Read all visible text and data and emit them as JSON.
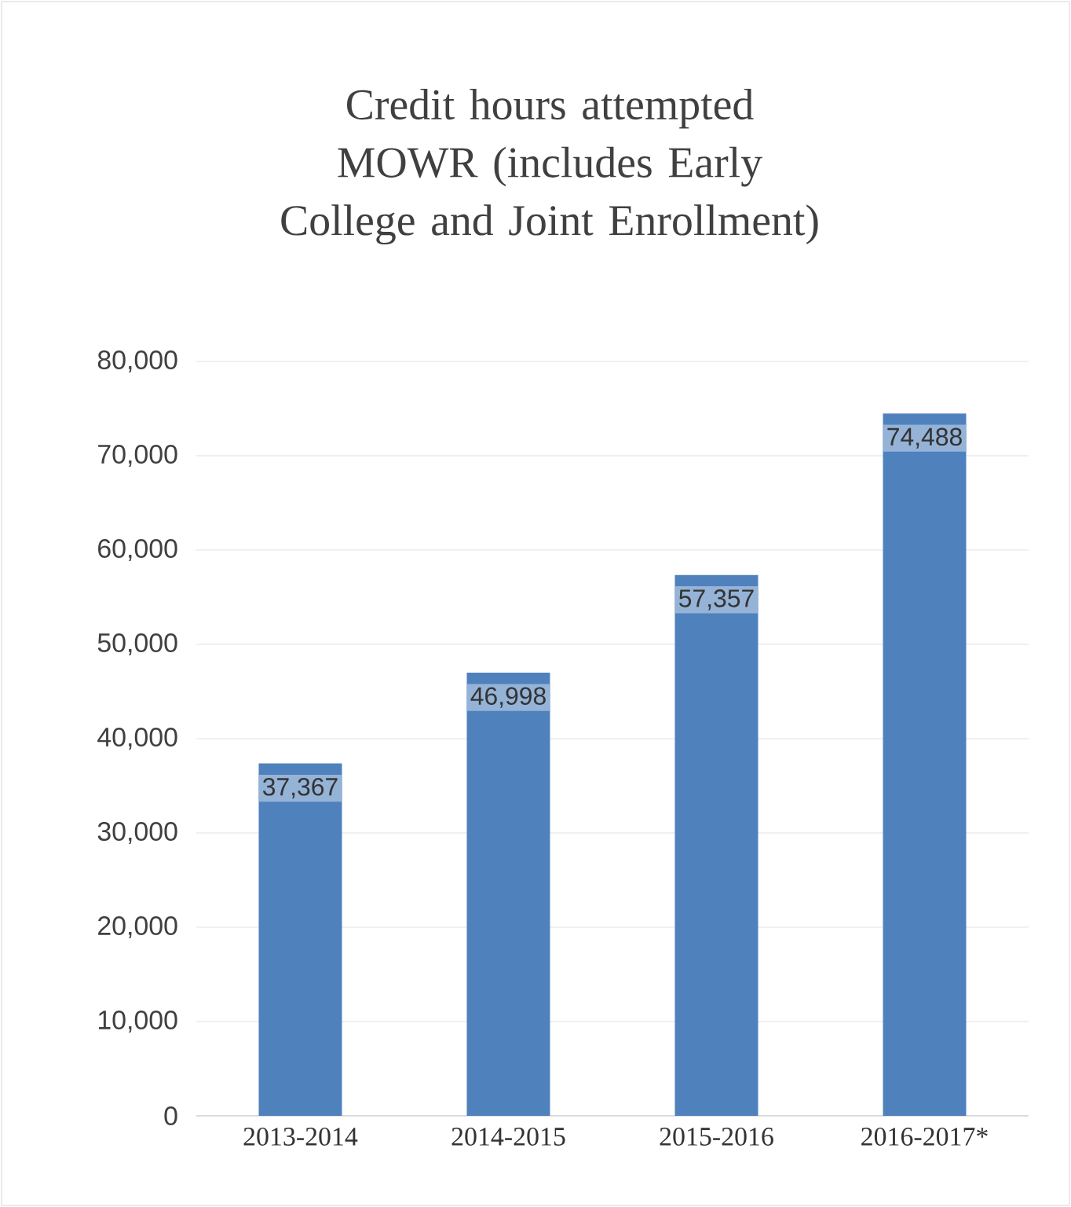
{
  "chart_data": {
    "type": "bar",
    "title": "Credit hours attempted MOWR (includes Early College and Joint Enrollment)",
    "categories": [
      "2013-2014",
      "2014-2015",
      "2015-2016",
      "2016-2017*"
    ],
    "values": [
      37367,
      46998,
      57357,
      74488
    ],
    "value_labels": [
      "37,367",
      "46,998",
      "57,357",
      "74,488"
    ],
    "color": "#4f81bd",
    "ylim": [
      0,
      80000
    ],
    "yticks": [
      0,
      {
        "value": 10000,
        "label": "10,000"
      },
      {
        "value": 20000,
        "label": "20,000"
      },
      {
        "value": 30000,
        "label": "30,000"
      },
      {
        "value": 40000,
        "label": "40,000"
      },
      {
        "value": 50000,
        "label": "50,000"
      },
      {
        "value": 60000,
        "label": "60,000"
      },
      {
        "value": 70000,
        "label": "70,000"
      },
      {
        "value": 80000,
        "label": "80,000"
      }
    ],
    "grid": "y"
  }
}
